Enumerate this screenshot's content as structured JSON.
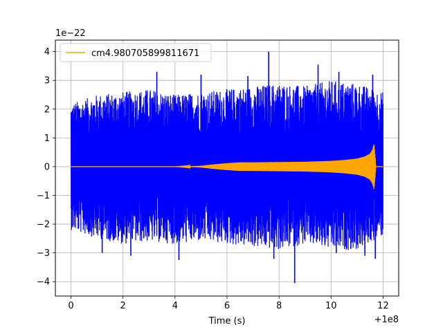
{
  "chart_data": {
    "type": "line",
    "title": "",
    "xlabel": "Time (s)",
    "ylabel": "",
    "x_offset_label": "+1e8",
    "y_scale_label": "1e−22",
    "xlim": [
      -0.6,
      12.6
    ],
    "ylim": [
      -4.5,
      4.4
    ],
    "x_ticks": [
      0,
      2,
      4,
      6,
      8,
      10,
      12
    ],
    "y_ticks": [
      -4,
      -3,
      -2,
      -1,
      0,
      1,
      2,
      3,
      4
    ],
    "x_tick_labels": [
      "0",
      "2",
      "4",
      "6",
      "8",
      "10",
      "12"
    ],
    "y_tick_labels": [
      "−4",
      "−3",
      "−2",
      "−1",
      "0",
      "1",
      "2",
      "3",
      "4"
    ],
    "grid": true,
    "legend_position": "top-left",
    "series": [
      {
        "name": "",
        "color": "#0000ff",
        "description_x_range": [
          0,
          12
        ],
        "envelope": {
          "x": [
            0,
            1,
            2,
            3,
            4,
            5,
            6,
            7,
            8,
            9,
            10,
            11,
            12
          ],
          "upper": [
            2.2,
            2.5,
            2.6,
            2.7,
            2.5,
            2.6,
            2.7,
            2.8,
            2.9,
            2.8,
            3.0,
            2.9,
            2.6
          ],
          "lower": [
            -2.2,
            -2.5,
            -2.7,
            -2.6,
            -2.7,
            -2.6,
            -2.7,
            -2.8,
            -2.9,
            -2.7,
            -2.9,
            -2.9,
            -2.4
          ]
        },
        "spikes": [
          {
            "x": 7.6,
            "y": 4.0
          },
          {
            "x": 8.6,
            "y": -4.05
          },
          {
            "x": 9.5,
            "y": 3.55
          },
          {
            "x": 11.6,
            "y": 3.2
          },
          {
            "x": 2.3,
            "y": -3.1
          },
          {
            "x": 4.15,
            "y": -3.25
          },
          {
            "x": 3.3,
            "y": 3.3
          },
          {
            "x": 1.2,
            "y": -3.0
          },
          {
            "x": 7.8,
            "y": -3.2
          },
          {
            "x": 11.3,
            "y": -3.1
          },
          {
            "x": 11.7,
            "y": -3.2
          },
          {
            "x": 5.0,
            "y": 3.2
          },
          {
            "x": 6.8,
            "y": 3.15
          },
          {
            "x": 10.3,
            "y": 3.3
          },
          {
            "x": 10.2,
            "y": -3.0
          }
        ]
      },
      {
        "name": "cm4.980705899811671",
        "color": "#ffa500",
        "envelope": {
          "x": [
            0,
            4,
            4.5,
            5,
            5.5,
            6,
            6.5,
            7,
            8,
            9,
            10,
            10.5,
            11,
            11.3,
            11.5,
            11.6,
            11.65,
            11.7,
            11.72,
            11.8,
            12.0
          ],
          "upper": [
            0.0,
            0.0,
            0.01,
            0.03,
            0.08,
            0.12,
            0.15,
            0.15,
            0.16,
            0.17,
            0.2,
            0.23,
            0.28,
            0.35,
            0.45,
            0.6,
            0.8,
            0.3,
            0.0,
            0.0,
            0.0
          ],
          "lower": [
            0.0,
            0.0,
            -0.01,
            -0.03,
            -0.08,
            -0.12,
            -0.15,
            -0.15,
            -0.16,
            -0.17,
            -0.2,
            -0.23,
            -0.28,
            -0.35,
            -0.45,
            -0.6,
            -0.78,
            -0.3,
            0.0,
            0.0,
            0.0
          ]
        }
      }
    ]
  }
}
